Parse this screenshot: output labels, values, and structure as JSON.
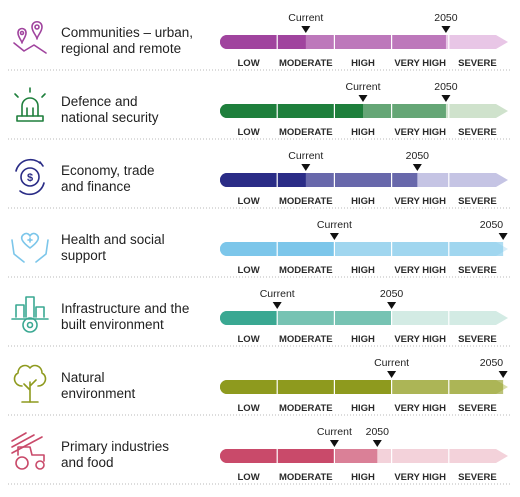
{
  "chart_data": {
    "type": "bar",
    "scale_labels": [
      "LOW",
      "MODERATE",
      "HIGH",
      "VERY HIGH",
      "SEVERE"
    ],
    "marker_labels": {
      "current": "Current",
      "future": "2050"
    },
    "rows": [
      {
        "name": "Communities – urban, regional and remote",
        "lines": [
          "Communities – urban,",
          "regional and remote"
        ],
        "icon": "map-pins-icon",
        "color_dark": "#a0449e",
        "color_light": "#e8c6e6",
        "current": 1.5,
        "future": 3.95
      },
      {
        "name": "Defence and national security",
        "lines": [
          "Defence and",
          "national security"
        ],
        "icon": "siren-icon",
        "color_dark": "#1e7f3c",
        "color_light": "#cfe2cc",
        "current": 2.5,
        "future": 3.95
      },
      {
        "name": "Economy, trade and finance",
        "lines": [
          "Economy, trade",
          "and finance"
        ],
        "icon": "dollar-cycle-icon",
        "color_dark": "#2a2c86",
        "color_light": "#c5c4e4",
        "current": 1.5,
        "future": 3.45
      },
      {
        "name": "Health and social support",
        "lines": [
          "Health and social",
          "support"
        ],
        "icon": "heart-hands-icon",
        "color_dark": "#7cc6ea",
        "color_light": "#d8edf8",
        "current": 2.0,
        "future": 4.95
      },
      {
        "name": "Infrastructure and the built environment",
        "lines": [
          "Infrastructure and the",
          "built environment"
        ],
        "icon": "city-gear-icon",
        "color_dark": "#3aa892",
        "color_light": "#d3ebe4",
        "current": 1.0,
        "future": 3.0
      },
      {
        "name": "Natural environment",
        "lines": [
          "Natural",
          "environment"
        ],
        "icon": "tree-icon",
        "color_dark": "#8e9a1e",
        "color_light": "#d9deaa",
        "current": 3.0,
        "future": 4.95
      },
      {
        "name": "Primary industries and food",
        "lines": [
          "Primary industries",
          "and food"
        ],
        "icon": "tractor-field-icon",
        "color_dark": "#c94a6a",
        "color_light": "#f3d2da",
        "current": 2.0,
        "future": 2.75
      }
    ]
  }
}
